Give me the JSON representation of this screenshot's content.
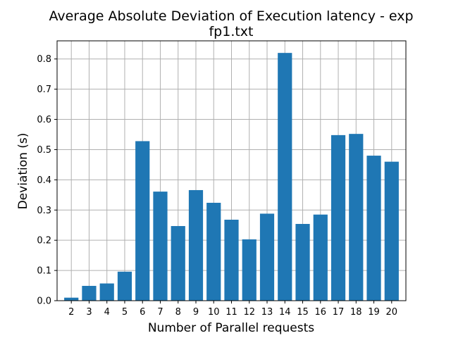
{
  "chart_data": {
    "type": "bar",
    "title_line1": "Average Absolute Deviation of Execution latency - exp",
    "title_line2": "fp1.txt",
    "xlabel": "Number of Parallel requests",
    "ylabel": "Deviation (s)",
    "categories": [
      "2",
      "3",
      "4",
      "5",
      "6",
      "7",
      "8",
      "9",
      "10",
      "11",
      "12",
      "13",
      "14",
      "15",
      "16",
      "17",
      "18",
      "19",
      "20"
    ],
    "values": [
      0.01,
      0.049,
      0.057,
      0.096,
      0.528,
      0.361,
      0.247,
      0.366,
      0.324,
      0.268,
      0.203,
      0.288,
      0.82,
      0.254,
      0.285,
      0.548,
      0.552,
      0.48,
      0.46
    ],
    "ylim": [
      0,
      0.86
    ],
    "yticks": [
      "0.0",
      "0.1",
      "0.2",
      "0.3",
      "0.4",
      "0.5",
      "0.6",
      "0.7",
      "0.8"
    ],
    "grid": true,
    "bar_color": "#1f77b4",
    "grid_color": "#b0b0b0"
  }
}
